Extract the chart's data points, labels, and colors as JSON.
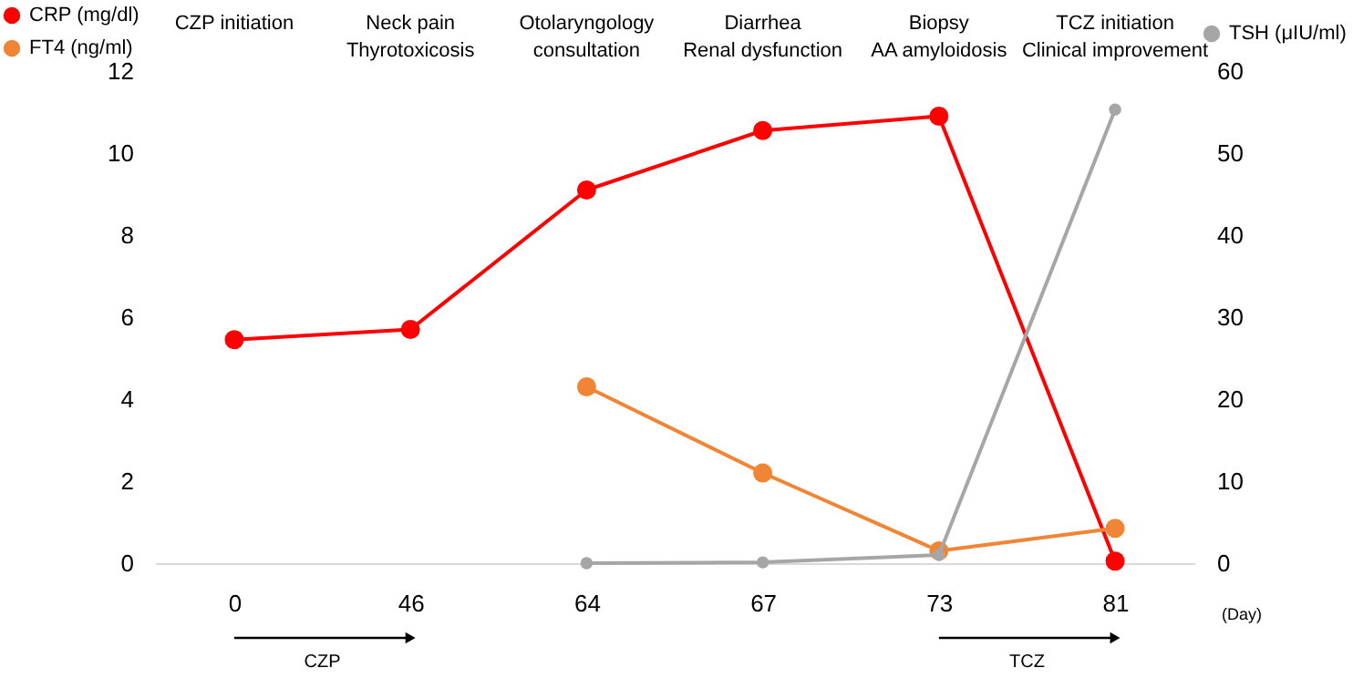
{
  "chart_data": {
    "type": "line",
    "categories": [
      "0",
      "46",
      "64",
      "67",
      "73",
      "81"
    ],
    "xlabel": "(Day)",
    "series": [
      {
        "name": "CRP (mg/dl)",
        "color": "#ff0000",
        "values": [
          5.45,
          5.7,
          9.1,
          10.55,
          10.9,
          0.05
        ]
      },
      {
        "name": "FT4 (ng/ml)",
        "color": "#f08535",
        "values": [
          null,
          null,
          4.3,
          2.2,
          0.3,
          0.85
        ]
      },
      {
        "name": "TSH (μIU/ml)",
        "color": "#a6a6a6",
        "values": [
          null,
          null,
          0,
          0.1,
          1,
          55.3
        ],
        "axis": "y2"
      }
    ],
    "ylim": [
      0,
      12
    ],
    "yticks": [
      0,
      2,
      4,
      6,
      8,
      10,
      12
    ],
    "y2lim": [
      0,
      60
    ],
    "y2ticks": [
      0,
      10,
      20,
      30,
      40,
      50,
      60
    ],
    "annotations": [
      "CZP initiation",
      "Neck pain\nThyrotoxicosis",
      "Otolaryngology\nconsultation",
      "Diarrhea\nRenal dysfunction",
      "Biopsy\nAA amyloidosis",
      "TCZ initiation\nClinical improvement",
      "CZP",
      "TCZ"
    ],
    "grid": false,
    "legend": "top",
    "marker": "circle",
    "line_style": "solid"
  }
}
